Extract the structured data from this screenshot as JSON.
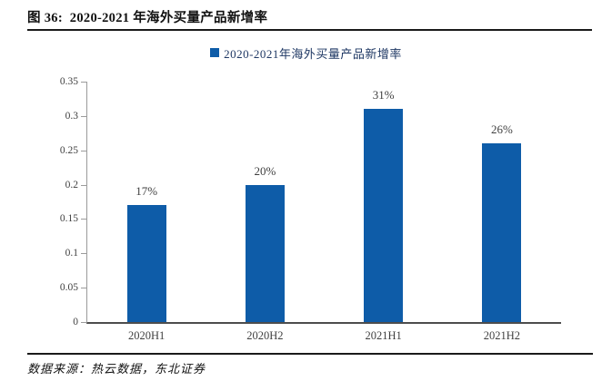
{
  "header": {
    "title": "图 36:  2020-2021 年海外买量产品新增率"
  },
  "legend": {
    "label": "2020-2021年海外买量产品新增率",
    "marker_color": "#0E5CA8"
  },
  "chart_data": {
    "type": "bar",
    "title": "2020-2021年海外买量产品新增率",
    "categories": [
      "2020H1",
      "2020H2",
      "2021H1",
      "2021H2"
    ],
    "values": [
      0.17,
      0.2,
      0.31,
      0.26
    ],
    "value_labels": [
      "17%",
      "20%",
      "31%",
      "26%"
    ],
    "xlabel": "",
    "ylabel": "",
    "ylim": [
      0,
      0.35
    ],
    "yticks": [
      0,
      0.05,
      0.1,
      0.15,
      0.2,
      0.25,
      0.3,
      0.35
    ],
    "ytick_labels": [
      "0",
      "0.05",
      "0.1",
      "0.15",
      "0.2",
      "0.25",
      "0.3",
      "0.35"
    ],
    "bar_color": "#0E5CA8",
    "axis_color": "#9b9b9b",
    "grid": false,
    "legend_position": "top-center"
  },
  "footer": {
    "source": "数据来源：热云数据，东北证券"
  }
}
